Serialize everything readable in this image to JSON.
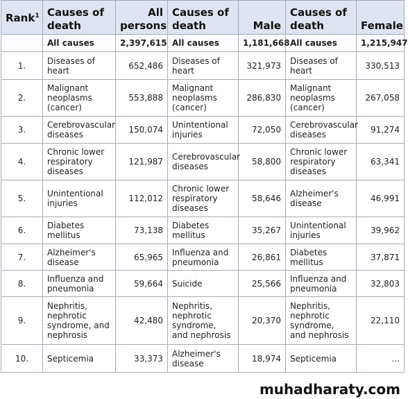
{
  "table": {
    "header": {
      "rank": "Rank",
      "footnote": "1",
      "cols": [
        "Causes of death",
        "All persons",
        "Causes of death",
        "Male",
        "Causes of death",
        "Female"
      ]
    },
    "total": [
      "All causes",
      "2,397,615",
      "All causes",
      "1,181,668",
      "All causes",
      "1,215,947"
    ],
    "rows": [
      [
        "1.",
        "Diseases of heart",
        "652,486",
        "Diseases of heart",
        "321,973",
        "Diseases of heart",
        "330,513"
      ],
      [
        "2.",
        "Malignant neoplasms (cancer)",
        "553,888",
        "Malignant neoplasms (cancer)",
        "286,830",
        "Malignant neoplasms (cancer)",
        "267,058"
      ],
      [
        "3.",
        "Cerebrovascular diseases",
        "150,074",
        "Unintentional injuries",
        "72,050",
        "Cerebrovascular diseases",
        "91,274"
      ],
      [
        "4.",
        "Chronic lower respiratory diseases",
        "121,987",
        "Cerebrovascular diseases",
        "58,800",
        "Chronic lower respiratory diseases",
        "63,341"
      ],
      [
        "5.",
        "Unintentional injuries",
        "112,012",
        "Chronic lower respiratory diseases",
        "58,646",
        "Alzheimer's disease",
        "46,991"
      ],
      [
        "6.",
        "Diabetes mellitus",
        "73,138",
        "Diabetes mellitus",
        "35,267",
        "Unintentional injuries",
        "39,962"
      ],
      [
        "7.",
        "Alzheimer's disease",
        "65,965",
        "Influenza and pneumonia",
        "26,861",
        "Diabetes mellitus",
        "37,871"
      ],
      [
        "8.",
        "Influenza and pneumonia",
        "59,664",
        "Suicide",
        "25,566",
        "Influenza and pneumonia",
        "32,803"
      ],
      [
        "9.",
        "Nephritis, nephrotic syndrome, and nephrosis",
        "42,480",
        "Nephritis, nephrotic syndrome, and nephrosis",
        "20,370",
        "Nephritis, nephrotic syndrome, and nephrosis",
        "22,110"
      ],
      [
        "10.",
        "Septicemia",
        "33,373",
        "Alzheimer's disease",
        "18,974",
        "Septicemia",
        "..."
      ]
    ]
  },
  "watermark": "muhadharaty.com"
}
